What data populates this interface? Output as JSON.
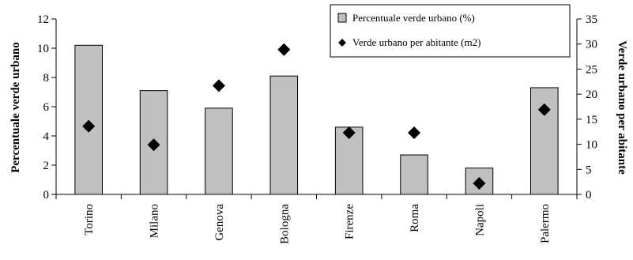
{
  "chart_data": {
    "type": "bar",
    "categories": [
      "Torino",
      "Milano",
      "Genova",
      "Bologna",
      "Firenze",
      "Roma",
      "Napoli",
      "Palermo"
    ],
    "series": [
      {
        "name": "Percentuale verde urbano (%)",
        "type": "bar",
        "axis": "left",
        "color": "#c0c0c0",
        "values": [
          10.2,
          7.1,
          5.9,
          8.1,
          4.6,
          2.7,
          1.8,
          7.3
        ]
      },
      {
        "name": "Verde urbano per abitante (m2)",
        "type": "scatter",
        "marker": "diamond",
        "axis": "right",
        "color": "#000000",
        "values": [
          13.6,
          9.9,
          21.7,
          28.9,
          12.3,
          12.3,
          2.2,
          16.9
        ]
      }
    ],
    "ylabel": "Percentuale verde urbano",
    "y2label": "Verde urbano per abitante",
    "ylim": [
      0,
      12
    ],
    "yticks": [
      0,
      2,
      4,
      6,
      8,
      10,
      12
    ],
    "y2lim": [
      0,
      35
    ],
    "y2ticks": [
      0,
      5,
      10,
      15,
      20,
      25,
      30,
      35
    ],
    "grid": false,
    "legend": "top-right"
  }
}
